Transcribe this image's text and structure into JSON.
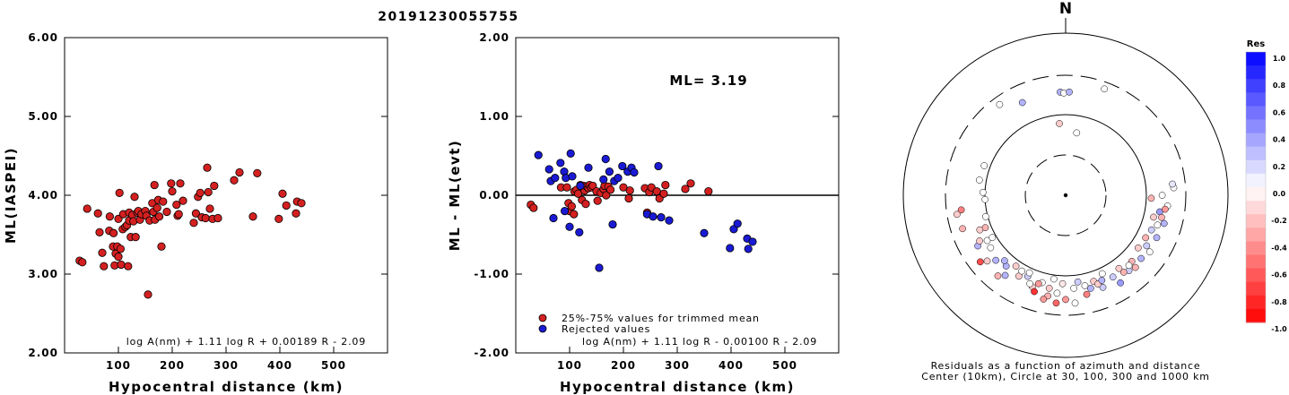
{
  "title": "20191230055755",
  "chart_data": [
    {
      "type": "scatter",
      "name": "ml-vs-distance",
      "xlabel": "Hypocentral distance (km)",
      "ylabel": "ML(IASPEI)",
      "xlim": [
        0,
        600
      ],
      "ylim": [
        2.0,
        6.0
      ],
      "xticks": [
        "100",
        "200",
        "300",
        "400",
        "500"
      ],
      "yticks": [
        "2.00",
        "3.00",
        "4.00",
        "5.00",
        "6.00"
      ],
      "formula": "log A(nm) + 1.11 log R + 0.00189 R - 2.09",
      "point_color": "#d42020",
      "points": [
        [
          28,
          3.17
        ],
        [
          33,
          3.15
        ],
        [
          42,
          3.83
        ],
        [
          62,
          3.77
        ],
        [
          65,
          3.53
        ],
        [
          70,
          3.27
        ],
        [
          73,
          3.1
        ],
        [
          83,
          3.55
        ],
        [
          84,
          3.73
        ],
        [
          90,
          3.35
        ],
        [
          91,
          3.52
        ],
        [
          93,
          3.11
        ],
        [
          95,
          3.26
        ],
        [
          98,
          3.35
        ],
        [
          100,
          3.22
        ],
        [
          100,
          3.7
        ],
        [
          102,
          4.03
        ],
        [
          104,
          3.32
        ],
        [
          105,
          3.12
        ],
        [
          108,
          3.57
        ],
        [
          109,
          3.76
        ],
        [
          113,
          3.6
        ],
        [
          116,
          3.62
        ],
        [
          118,
          3.1
        ],
        [
          120,
          3.68
        ],
        [
          120,
          3.78
        ],
        [
          123,
          3.47
        ],
        [
          126,
          3.75
        ],
        [
          128,
          3.67
        ],
        [
          130,
          3.98
        ],
        [
          132,
          3.47
        ],
        [
          135,
          3.78
        ],
        [
          137,
          3.8
        ],
        [
          140,
          3.69
        ],
        [
          143,
          3.76
        ],
        [
          150,
          3.8
        ],
        [
          152,
          3.74
        ],
        [
          155,
          2.74
        ],
        [
          158,
          3.68
        ],
        [
          163,
          3.9
        ],
        [
          165,
          3.79
        ],
        [
          167,
          4.13
        ],
        [
          168,
          3.69
        ],
        [
          172,
          3.84
        ],
        [
          174,
          3.94
        ],
        [
          176,
          3.73
        ],
        [
          180,
          3.35
        ],
        [
          183,
          3.92
        ],
        [
          190,
          3.79
        ],
        [
          198,
          4.15
        ],
        [
          200,
          4.05
        ],
        [
          208,
          3.88
        ],
        [
          210,
          3.74
        ],
        [
          212,
          3.76
        ],
        [
          215,
          4.15
        ],
        [
          220,
          3.93
        ],
        [
          240,
          3.65
        ],
        [
          244,
          3.77
        ],
        [
          248,
          3.98
        ],
        [
          252,
          4.03
        ],
        [
          255,
          3.72
        ],
        [
          262,
          3.71
        ],
        [
          265,
          4.35
        ],
        [
          267,
          4.04
        ],
        [
          270,
          3.83
        ],
        [
          275,
          3.7
        ],
        [
          278,
          4.12
        ],
        [
          285,
          3.71
        ],
        [
          315,
          4.19
        ],
        [
          325,
          4.29
        ],
        [
          350,
          3.73
        ],
        [
          358,
          4.28
        ],
        [
          398,
          3.7
        ],
        [
          405,
          4.02
        ],
        [
          412,
          3.87
        ],
        [
          430,
          3.77
        ],
        [
          432,
          3.92
        ],
        [
          440,
          3.9
        ]
      ]
    },
    {
      "type": "scatter",
      "name": "residual-vs-distance",
      "xlabel": "Hypocentral distance (km)",
      "ylabel": "ML - ML(evt)",
      "xlim": [
        0,
        600
      ],
      "ylim": [
        -2.0,
        2.0
      ],
      "xticks": [
        "100",
        "200",
        "300",
        "400",
        "500"
      ],
      "yticks": [
        "-2.00",
        "-1.00",
        "0.00",
        "1.00",
        "2.00"
      ],
      "annotation": "ML= 3.19",
      "formula": "log A(nm) + 1.11 log R - 0.00100 R - 2.09",
      "legend_position": "bottom-left",
      "series": [
        {
          "name": "25%-75% values for trimmed mean",
          "color": "#d42020",
          "points": [
            [
              28,
              -0.12
            ],
            [
              33,
              -0.16
            ],
            [
              84,
              0.1
            ],
            [
              95,
              0.1
            ],
            [
              98,
              -0.1
            ],
            [
              100,
              -0.2
            ],
            [
              104,
              -0.14
            ],
            [
              108,
              -0.24
            ],
            [
              109,
              0.05
            ],
            [
              113,
              0.07
            ],
            [
              116,
              0.02
            ],
            [
              120,
              0.13
            ],
            [
              123,
              -0.06
            ],
            [
              126,
              0.12
            ],
            [
              128,
              0.06
            ],
            [
              130,
              -0.11
            ],
            [
              132,
              0.11
            ],
            [
              135,
              0.09
            ],
            [
              137,
              0.13
            ],
            [
              140,
              0.1
            ],
            [
              143,
              0.12
            ],
            [
              150,
              0.05
            ],
            [
              152,
              -0.07
            ],
            [
              158,
              0.03
            ],
            [
              163,
              0.08
            ],
            [
              165,
              0.12
            ],
            [
              168,
              0.0
            ],
            [
              172,
              0.11
            ],
            [
              176,
              0.07
            ],
            [
              200,
              0.1
            ],
            [
              210,
              -0.04
            ],
            [
              212,
              0.06
            ],
            [
              240,
              0.09
            ],
            [
              244,
              -0.22
            ],
            [
              248,
              0.04
            ],
            [
              252,
              0.1
            ],
            [
              262,
              0.05
            ],
            [
              267,
              -0.04
            ],
            [
              275,
              0.02
            ],
            [
              278,
              0.13
            ],
            [
              315,
              0.08
            ],
            [
              325,
              0.15
            ],
            [
              358,
              0.05
            ]
          ]
        },
        {
          "name": "Rejected values",
          "color": "#1a1ad4",
          "points": [
            [
              42,
              0.51
            ],
            [
              62,
              0.33
            ],
            [
              65,
              0.18
            ],
            [
              70,
              -0.29
            ],
            [
              73,
              0.22
            ],
            [
              83,
              0.41
            ],
            [
              90,
              0.3
            ],
            [
              91,
              -0.2
            ],
            [
              93,
              0.22
            ],
            [
              100,
              -0.4
            ],
            [
              102,
              0.53
            ],
            [
              105,
              0.24
            ],
            [
              118,
              -0.47
            ],
            [
              120,
              0.12
            ],
            [
              135,
              0.35
            ],
            [
              155,
              -0.92
            ],
            [
              163,
              0.2
            ],
            [
              167,
              0.46
            ],
            [
              174,
              0.3
            ],
            [
              180,
              -0.37
            ],
            [
              183,
              0.18
            ],
            [
              190,
              0.22
            ],
            [
              198,
              0.37
            ],
            [
              208,
              0.3
            ],
            [
              215,
              0.35
            ],
            [
              220,
              0.29
            ],
            [
              244,
              -0.24
            ],
            [
              255,
              -0.27
            ],
            [
              265,
              0.37
            ],
            [
              270,
              -0.28
            ],
            [
              285,
              -0.32
            ],
            [
              350,
              -0.48
            ],
            [
              398,
              -0.67
            ],
            [
              405,
              -0.43
            ],
            [
              412,
              -0.36
            ],
            [
              430,
              -0.55
            ],
            [
              432,
              -0.68
            ],
            [
              440,
              -0.59
            ]
          ]
        }
      ]
    },
    {
      "type": "polar-scatter",
      "name": "residual-azimuth",
      "north_label": "N",
      "caption_line1": "Residuals as a function of azimuth and distance",
      "caption_line2": "Center (10km), Circle at 30, 100, 300 and 1000 km",
      "colorbar_title": "Res",
      "colorbar_ticks": [
        "1.0",
        "0.8",
        "0.6",
        "0.4",
        "0.2",
        "0.0",
        "-0.2",
        "-0.4",
        "-0.6",
        "-0.8",
        "-1.0"
      ],
      "color_max": "#0000ff",
      "color_min": "#ff0000",
      "radial_rings_km": [
        30,
        100,
        300,
        1000
      ],
      "points": [
        {
          "az": -36,
          "dist": 260,
          "res": 0.0
        },
        {
          "az": -25,
          "dist": 210,
          "res": 0.3
        },
        {
          "az": -3,
          "dist": 215,
          "res": 0.3
        },
        {
          "az": -1,
          "dist": 210,
          "res": 0.0
        },
        {
          "az": 2,
          "dist": 215,
          "res": 0.3
        },
        {
          "az": 20,
          "dist": 265,
          "res": 0.0
        },
        {
          "az": -5,
          "dist": 85,
          "res": -0.2
        },
        {
          "az": 10,
          "dist": 70,
          "res": 0.0
        },
        {
          "az": -120,
          "dist": 150,
          "res": 0.0
        },
        {
          "az": -112,
          "dist": 130,
          "res": -0.3
        },
        {
          "az": -128,
          "dist": 240,
          "res": -0.7
        },
        {
          "az": -120,
          "dist": 205,
          "res": 0.3
        },
        {
          "az": -118,
          "dist": 185,
          "res": -0.2
        },
        {
          "az": -133,
          "dist": 175,
          "res": 0.3
        },
        {
          "az": -140,
          "dist": 160,
          "res": 0.3
        },
        {
          "az": -143,
          "dist": 200,
          "res": 0.3
        },
        {
          "az": -150,
          "dist": 165,
          "res": -0.2
        },
        {
          "az": -145,
          "dist": 130,
          "res": -0.2
        },
        {
          "az": -155,
          "dist": 145,
          "res": 0.2
        },
        {
          "az": -160,
          "dist": 185,
          "res": -0.2
        },
        {
          "az": -155,
          "dist": 125,
          "res": 0.0
        },
        {
          "az": -165,
          "dist": 150,
          "res": 0.0
        },
        {
          "az": -170,
          "dist": 170,
          "res": -0.2
        },
        {
          "az": -162,
          "dist": 205,
          "res": -0.8
        },
        {
          "az": -170,
          "dist": 210,
          "res": -0.3
        },
        {
          "az": -175,
          "dist": 190,
          "res": 0.0
        },
        {
          "az": -178,
          "dist": 140,
          "res": -0.1
        },
        {
          "az": 180,
          "dist": 220,
          "res": -0.4
        },
        {
          "az": 175,
          "dist": 165,
          "res": 0.0
        },
        {
          "az": 172,
          "dist": 135,
          "res": 0.2
        },
        {
          "az": 168,
          "dist": 205,
          "res": -0.5
        },
        {
          "az": 165,
          "dist": 180,
          "res": 0.3
        },
        {
          "az": 162,
          "dist": 150,
          "res": -0.2
        },
        {
          "az": 158,
          "dist": 195,
          "res": 0.2
        },
        {
          "az": 155,
          "dist": 130,
          "res": 0.0
        },
        {
          "az": 150,
          "dist": 170,
          "res": 0.2
        },
        {
          "az": 148,
          "dist": 215,
          "res": 0.4
        },
        {
          "az": 144,
          "dist": 150,
          "res": -0.2
        },
        {
          "az": 140,
          "dist": 190,
          "res": 0.2
        },
        {
          "az": 135,
          "dist": 165,
          "res": -0.3
        },
        {
          "az": 130,
          "dist": 190,
          "res": 0.3
        },
        {
          "az": 126,
          "dist": 145,
          "res": -0.2
        },
        {
          "az": 122,
          "dist": 175,
          "res": 0.2
        },
        {
          "az": 118,
          "dist": 150,
          "res": -0.3
        },
        {
          "az": 115,
          "dist": 200,
          "res": 0.3
        },
        {
          "az": 112,
          "dist": 160,
          "res": 0.2
        },
        {
          "az": 108,
          "dist": 180,
          "res": 0.0
        },
        {
          "az": 104,
          "dist": 150,
          "res": -0.2
        },
        {
          "az": 100,
          "dist": 175,
          "res": 0.4
        },
        {
          "az": 96,
          "dist": 210,
          "res": 0.0
        },
        {
          "az": 92,
          "dist": 125,
          "res": -0.3
        },
        {
          "az": 90,
          "dist": 180,
          "res": 0.0
        },
        {
          "az": 86,
          "dist": 240,
          "res": 0.0
        },
        {
          "az": 84,
          "dist": 235,
          "res": 0.1
        },
        {
          "az": 98,
          "dist": 200,
          "res": -0.4
        },
        {
          "az": 103,
          "dist": 190,
          "res": -0.3
        },
        {
          "az": 124,
          "dist": 205,
          "res": 0.0
        },
        {
          "az": 136,
          "dist": 200,
          "res": -0.3
        },
        {
          "az": -175,
          "dist": 240,
          "res": -0.6
        },
        {
          "az": 175,
          "dist": 240,
          "res": 0.0
        },
        {
          "az": -168,
          "dist": 230,
          "res": -0.4
        },
        {
          "az": -98,
          "dist": 225,
          "res": -0.5
        },
        {
          "az": -100,
          "dist": 250,
          "res": -0.2
        },
        {
          "az": -108,
          "dist": 240,
          "res": -0.3
        },
        {
          "az": -80,
          "dist": 135,
          "res": 0.0
        },
        {
          "az": -70,
          "dist": 130,
          "res": 0.0
        },
        {
          "az": -105,
          "dist": 110,
          "res": 0.0
        },
        {
          "az": -112,
          "dist": 160,
          "res": -0.2
        },
        {
          "az": -125,
          "dist": 155,
          "res": 0.0
        },
        {
          "az": -137,
          "dist": 145,
          "res": 0.3
        },
        {
          "az": -150,
          "dist": 135,
          "res": 0.0
        },
        {
          "az": -158,
          "dist": 175,
          "res": 0.0
        },
        {
          "az": -163,
          "dist": 160,
          "res": -0.4
        },
        {
          "az": -140,
          "dist": 225,
          "res": -0.3
        },
        {
          "az": -130,
          "dist": 210,
          "res": -0.2
        },
        {
          "az": 168,
          "dist": 160,
          "res": 0.0
        },
        {
          "az": 160,
          "dist": 170,
          "res": -0.2
        },
        {
          "az": 157,
          "dist": 160,
          "res": 0.3
        },
        {
          "az": 143,
          "dist": 180,
          "res": -0.3
        },
        {
          "az": 138,
          "dist": 170,
          "res": 0.0
        },
        {
          "az": -93,
          "dist": 100,
          "res": 0.0
        },
        {
          "az": -88,
          "dist": 110,
          "res": 0.0
        },
        {
          "az": -120,
          "dist": 120,
          "res": 0.0
        },
        {
          "az": 106,
          "dist": 210,
          "res": 0.3
        },
        {
          "az": -172,
          "dist": 120,
          "res": 0.0
        }
      ]
    }
  ]
}
